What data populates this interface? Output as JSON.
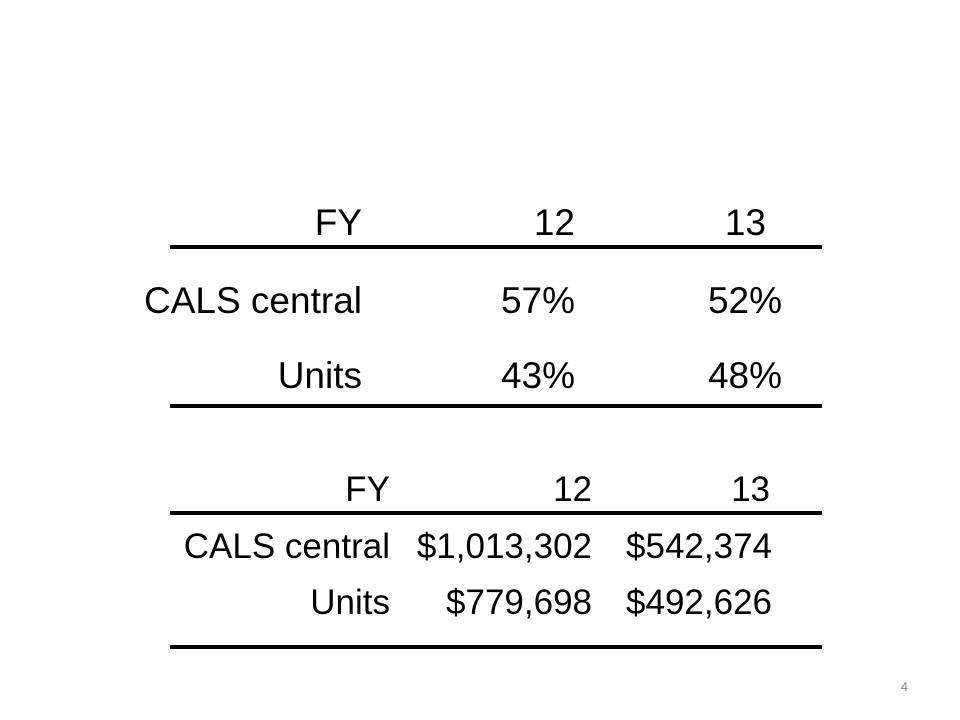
{
  "table_percent": {
    "header": [
      "FY",
      "12",
      "13"
    ],
    "rows": [
      {
        "label": "CALS central",
        "fy12": "57%",
        "fy13": "52%"
      },
      {
        "label": "Units",
        "fy12": "43%",
        "fy13": "48%"
      }
    ]
  },
  "table_dollars": {
    "header": [
      "FY",
      "12",
      "13"
    ],
    "rows": [
      {
        "label": "CALS central",
        "fy12": "$1,013,302",
        "fy13": "$542,374"
      },
      {
        "label": "Units",
        "fy12": "$779,698",
        "fy13": "$492,626"
      }
    ]
  },
  "page_number": "4"
}
